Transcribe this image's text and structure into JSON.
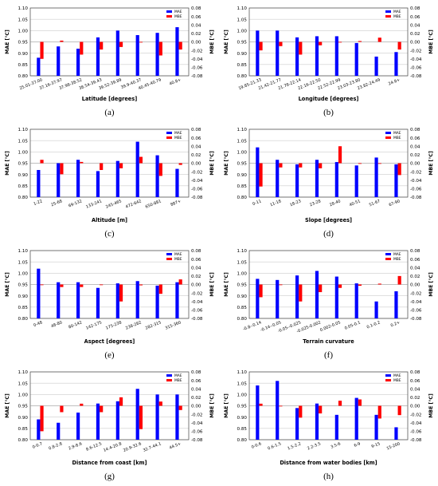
{
  "colors": {
    "mae": "#0000ff",
    "mbe": "#ff0000",
    "zero_line": "#999999",
    "grid": "#cccccc"
  },
  "chart_data": [
    {
      "panel": "(a)",
      "type": "bar",
      "categories": [
        "25.01-37.00",
        "37.16-37.97",
        "37.98-38.52",
        "38.54-39.43",
        "39.52-39.89",
        "39.9-40.37",
        "40.45-40.79",
        "40.8+"
      ],
      "series": [
        {
          "name": "MAE",
          "axis": "left",
          "values": [
            0.88,
            0.93,
            0.92,
            0.97,
            1.0,
            0.98,
            0.99,
            1.015
          ]
        },
        {
          "name": "MBE",
          "axis": "right",
          "values": [
            -0.04,
            0.003,
            -0.03,
            -0.018,
            -0.012,
            0.0,
            -0.032,
            -0.018
          ]
        }
      ],
      "xlabel": "Latitude [degrees]",
      "ylabel_left": "MAE [°C]",
      "ylabel_right": "MBE [°C]",
      "ylim_left": [
        0.8,
        1.1
      ],
      "yticks_left": [
        "0.80",
        "0.85",
        "0.90",
        "0.95",
        "1.00",
        "1.05",
        "1.10"
      ],
      "ylim_right": [
        -0.08,
        0.08
      ],
      "yticks_right": [
        "-0.08",
        "-0.06",
        "-0.04",
        "-0.02",
        "0.00",
        "0.02",
        "0.04",
        "0.06",
        "0.08"
      ],
      "legend": [
        "MAE",
        "MBE"
      ],
      "legend_position": "top-right",
      "grid": true
    },
    {
      "panel": "(b)",
      "type": "bar",
      "categories": [
        "19.85-21.33",
        "21.42-21.77",
        "21.78-22.14",
        "22.16-22.50",
        "22.52-22.99",
        "23.03-23.80",
        "23.82-24.49",
        "24.8+"
      ],
      "series": [
        {
          "name": "MAE",
          "axis": "left",
          "values": [
            1.0,
            1.0,
            0.97,
            0.975,
            0.975,
            0.945,
            0.885,
            0.905
          ]
        },
        {
          "name": "MBE",
          "axis": "right",
          "values": [
            -0.02,
            -0.01,
            -0.03,
            -0.008,
            0.0,
            0.002,
            0.01,
            -0.018
          ]
        }
      ],
      "xlabel": "Longitude [degrees]",
      "ylabel_left": "MAE [°C]",
      "ylabel_right": "MBE [°C]",
      "ylim_left": [
        0.8,
        1.1
      ],
      "yticks_left": [
        "0.80",
        "0.85",
        "0.90",
        "0.95",
        "1.00",
        "1.05",
        "1.10"
      ],
      "ylim_right": [
        -0.08,
        0.08
      ],
      "yticks_right": [
        "-0.08",
        "-0.06",
        "-0.04",
        "-0.02",
        "0.00",
        "0.02",
        "0.04",
        "0.06",
        "0.08"
      ],
      "legend": [
        "MAE",
        "MBE"
      ],
      "legend_position": "top-right",
      "grid": true
    },
    {
      "panel": "(c)",
      "type": "bar",
      "categories": [
        "1-22",
        "25-68",
        "69-132",
        "133-241",
        "245-465",
        "472-642",
        "650-881",
        "887+"
      ],
      "series": [
        {
          "name": "MAE",
          "axis": "left",
          "values": [
            0.92,
            0.95,
            0.965,
            0.915,
            0.96,
            1.045,
            0.985,
            0.925
          ]
        },
        {
          "name": "MBE",
          "axis": "right",
          "values": [
            0.008,
            -0.026,
            0.003,
            -0.016,
            -0.012,
            0.015,
            -0.03,
            -0.004
          ]
        }
      ],
      "xlabel": "Altitude [m]",
      "ylabel_left": "MAE [°C]",
      "ylabel_right": "MBE [°C]",
      "ylim_left": [
        0.8,
        1.1
      ],
      "yticks_left": [
        "0.80",
        "0.85",
        "0.90",
        "0.95",
        "1.00",
        "1.05",
        "1.10"
      ],
      "ylim_right": [
        -0.08,
        0.08
      ],
      "yticks_right": [
        "-0.08",
        "-0.06",
        "-0.04",
        "-0.02",
        "0.00",
        "0.02",
        "0.04",
        "0.06",
        "0.08"
      ],
      "legend": [
        "MAE",
        "MBE"
      ],
      "legend_position": "top-right",
      "grid": true
    },
    {
      "panel": "(d)",
      "type": "bar",
      "categories": [
        "0-11",
        "11-18",
        "18-23",
        "23-28",
        "28-40",
        "40-51",
        "51-67",
        "67-90"
      ],
      "series": [
        {
          "name": "MAE",
          "axis": "left",
          "values": [
            1.02,
            0.965,
            0.945,
            0.965,
            0.955,
            0.94,
            0.975,
            0.945
          ]
        },
        {
          "name": "MBE",
          "axis": "right",
          "values": [
            -0.055,
            -0.01,
            -0.01,
            -0.012,
            0.04,
            0.0,
            0.0,
            -0.028
          ]
        }
      ],
      "xlabel": "Slope [degrees]",
      "ylabel_left": "MAE [°C]",
      "ylabel_right": "MBE [°C]",
      "ylim_left": [
        0.8,
        1.1
      ],
      "yticks_left": [
        "0.80",
        "0.85",
        "0.90",
        "0.95",
        "1.00",
        "1.05",
        "1.10"
      ],
      "ylim_right": [
        -0.08,
        0.08
      ],
      "yticks_right": [
        "-0.08",
        "-0.06",
        "-0.04",
        "-0.02",
        "0.00",
        "0.02",
        "0.04",
        "0.06",
        "0.08"
      ],
      "legend": [
        "MAE",
        "MBE"
      ],
      "legend_position": "top-right",
      "grid": true
    },
    {
      "panel": "(e)",
      "type": "bar",
      "categories": [
        "0-48",
        "48-80",
        "80-142",
        "142-175",
        "175-238",
        "238-282",
        "282-315",
        "315-360"
      ],
      "series": [
        {
          "name": "MAE",
          "axis": "left",
          "values": [
            1.02,
            0.96,
            0.96,
            0.935,
            0.955,
            0.965,
            0.945,
            0.96
          ]
        },
        {
          "name": "MBE",
          "axis": "right",
          "values": [
            0.0,
            -0.006,
            -0.006,
            0.0,
            -0.04,
            -0.002,
            -0.022,
            0.012
          ]
        }
      ],
      "xlabel": "Aspect [degrees]",
      "ylabel_left": "MAE [°C]",
      "ylabel_right": "MBE [°C]",
      "ylim_left": [
        0.8,
        1.1
      ],
      "yticks_left": [
        "0.80",
        "0.85",
        "0.90",
        "0.95",
        "1.00",
        "1.05",
        "1.10"
      ],
      "ylim_right": [
        -0.08,
        0.08
      ],
      "yticks_right": [
        "-0.08",
        "-0.06",
        "-0.04",
        "-0.02",
        "0.00",
        "0.02",
        "0.04",
        "0.06",
        "0.08"
      ],
      "legend": [
        "MAE",
        "MBE"
      ],
      "legend_position": "top-right",
      "grid": true
    },
    {
      "panel": "(f)",
      "type": "bar",
      "categories": [
        "-0.8--0.14",
        "-0.14--0.05",
        "-0.05--0.025",
        "-0.025-0.002",
        "0.002-0.05",
        "0.05-0.1",
        "0.1-0.2",
        "0.2+"
      ],
      "series": [
        {
          "name": "MAE",
          "axis": "left",
          "values": [
            0.975,
            0.97,
            0.99,
            1.01,
            0.985,
            0.955,
            0.875,
            0.92
          ]
        },
        {
          "name": "MBE",
          "axis": "right",
          "values": [
            -0.03,
            0.0,
            -0.04,
            -0.018,
            -0.008,
            -0.003,
            0.002,
            0.02
          ]
        }
      ],
      "xlabel": "Terrain curvature",
      "ylabel_left": "MAE [°C]",
      "ylabel_right": "MBE [°C]",
      "ylim_left": [
        0.8,
        1.1
      ],
      "yticks_left": [
        "0.80",
        "0.85",
        "0.90",
        "0.95",
        "1.00",
        "1.05",
        "1.10"
      ],
      "ylim_right": [
        -0.08,
        0.08
      ],
      "yticks_right": [
        "-0.08",
        "-0.06",
        "-0.04",
        "-0.02",
        "0.00",
        "0.02",
        "0.04",
        "0.06",
        "0.08"
      ],
      "legend": [
        "MAE",
        "MBE"
      ],
      "legend_position": "top-right",
      "grid": true
    },
    {
      "panel": "(g)",
      "type": "bar",
      "categories": [
        "0-0.7",
        "0.8-2.8",
        "2.9-8.6",
        "8.6-12.5",
        "14.4-20.8",
        "20.9-32.6",
        "32.7-44.1",
        "44.5+"
      ],
      "series": [
        {
          "name": "MAE",
          "axis": "left",
          "values": [
            0.89,
            0.875,
            0.92,
            0.96,
            0.97,
            1.025,
            1.0,
            1.0
          ]
        },
        {
          "name": "MBE",
          "axis": "right",
          "values": [
            -0.06,
            -0.015,
            0.005,
            -0.015,
            0.02,
            -0.055,
            0.01,
            -0.01
          ]
        }
      ],
      "xlabel": "Distance from coast [km]",
      "ylabel_left": "MAE [°C]",
      "ylabel_right": "MBE [°C]",
      "ylim_left": [
        0.8,
        1.1
      ],
      "yticks_left": [
        "0.80",
        "0.85",
        "0.90",
        "0.95",
        "1.00",
        "1.05",
        "1.10"
      ],
      "ylim_right": [
        -0.08,
        0.08
      ],
      "yticks_right": [
        "-0.08",
        "-0.06",
        "-0.04",
        "-0.02",
        "0.00",
        "0.02",
        "0.04",
        "0.06",
        "0.08"
      ],
      "legend": [
        "MAE",
        "MBE"
      ],
      "legend_position": "top-right",
      "grid": true
    },
    {
      "panel": "(h)",
      "type": "bar",
      "categories": [
        "0-0.6",
        "0.6-1.5",
        "1.5-2.2",
        "2.2-3.5",
        "3.5-6",
        "6-9",
        "9-15",
        "15-200"
      ],
      "series": [
        {
          "name": "MAE",
          "axis": "left",
          "values": [
            1.04,
            1.06,
            0.94,
            0.96,
            0.91,
            0.985,
            0.91,
            0.855
          ]
        },
        {
          "name": "MBE",
          "axis": "right",
          "values": [
            0.005,
            0.0,
            -0.028,
            -0.018,
            0.012,
            0.015,
            -0.03,
            -0.022
          ]
        }
      ],
      "xlabel": "Distance from water bodies [km]",
      "ylabel_left": "MAE [°C]",
      "ylabel_right": "MBE [°C]",
      "ylim_left": [
        0.8,
        1.1
      ],
      "yticks_left": [
        "0.80",
        "0.85",
        "0.90",
        "0.95",
        "1.00",
        "1.05",
        "1.10"
      ],
      "ylim_right": [
        -0.08,
        0.08
      ],
      "yticks_right": [
        "-0.08",
        "-0.06",
        "-0.04",
        "-0.02",
        "0.00",
        "0.02",
        "0.04",
        "0.06",
        "0.08"
      ],
      "legend": [
        "MAE",
        "MBE"
      ],
      "legend_position": "top-right",
      "grid": true
    }
  ]
}
